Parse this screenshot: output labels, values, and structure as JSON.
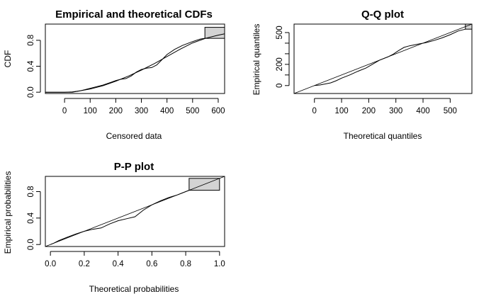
{
  "chart_data": [
    {
      "type": "line",
      "title": "Empirical and theoretical CDFs",
      "xlabel": "Censored data",
      "ylabel": "CDF",
      "xlim": [
        -75,
        625
      ],
      "ylim": [
        -0.02,
        1.05
      ],
      "xticks": [
        0,
        100,
        200,
        300,
        400,
        500,
        600
      ],
      "yticks": [
        0.0,
        0.4,
        0.8
      ],
      "xtick_labels": [
        "0",
        "100",
        "200",
        "300",
        "400",
        "500",
        "600"
      ],
      "ytick_labels": [
        "0.0",
        "0.4",
        "0.8"
      ],
      "uncertainty_box": {
        "x": [
          548,
          625
        ],
        "y": [
          0.83,
          1.0
        ]
      },
      "series": [
        {
          "color": "#000000",
          "x": [
            -75,
            30,
            60,
            90,
            120,
            150,
            180,
            200,
            220,
            240,
            260,
            280,
            300,
            320,
            340,
            360,
            380,
            400,
            430,
            460,
            500,
            530,
            548
          ],
          "y": [
            0.0,
            0.0,
            0.02,
            0.05,
            0.08,
            0.11,
            0.15,
            0.18,
            0.2,
            0.21,
            0.25,
            0.31,
            0.35,
            0.37,
            0.38,
            0.42,
            0.5,
            0.58,
            0.66,
            0.72,
            0.78,
            0.82,
            0.83
          ]
        },
        {
          "color": "#ff0000",
          "x": [
            -75,
            0,
            30,
            60,
            100,
            150,
            200,
            250,
            300,
            350,
            400,
            450,
            500,
            550,
            600,
            625
          ],
          "y": [
            0.0,
            0.0,
            0.005,
            0.02,
            0.05,
            0.1,
            0.17,
            0.25,
            0.34,
            0.44,
            0.55,
            0.66,
            0.76,
            0.83,
            0.88,
            0.9
          ]
        }
      ]
    },
    {
      "type": "scatter",
      "title": "Q-Q plot",
      "xlabel": "Theoretical quantiles",
      "ylabel": "Empirical quantiles",
      "xlim": [
        -75,
        580
      ],
      "ylim": [
        -75,
        580
      ],
      "xticks": [
        0,
        100,
        200,
        300,
        400,
        500
      ],
      "yticks": [
        0,
        200,
        500
      ],
      "xtick_labels": [
        "0",
        "100",
        "200",
        "300",
        "400",
        "500"
      ],
      "ytick_labels": [
        "0",
        "200",
        "500"
      ],
      "yticks_minor": [
        100,
        300,
        400
      ],
      "uncertainty_box": {
        "x": [
          556,
          580
        ],
        "y": [
          532,
          580
        ]
      },
      "series": [
        {
          "color": "#000000",
          "x": [
            0,
            20,
            40,
            60,
            80,
            100,
            130,
            160,
            190,
            210,
            240,
            270,
            290,
            310,
            330,
            350,
            380,
            410,
            440,
            470,
            500,
            530,
            556
          ],
          "y": [
            0,
            5,
            15,
            25,
            45,
            70,
            100,
            135,
            165,
            195,
            240,
            270,
            295,
            330,
            360,
            375,
            390,
            405,
            425,
            450,
            480,
            515,
            532
          ]
        }
      ]
    },
    {
      "type": "scatter",
      "title": "P-P plot",
      "xlabel": "Theoretical probabilities",
      "ylabel": "Empirical probabilities",
      "xlim": [
        -0.03,
        1.03
      ],
      "ylim": [
        -0.03,
        1.03
      ],
      "xticks": [
        0.0,
        0.2,
        0.4,
        0.6,
        0.8,
        1.0
      ],
      "yticks": [
        0.0,
        0.4,
        0.8
      ],
      "xtick_labels": [
        "0.0",
        "0.2",
        "0.4",
        "0.6",
        "0.8",
        "1.0"
      ],
      "ytick_labels": [
        "0.0",
        "0.4",
        "0.8"
      ],
      "uncertainty_box": {
        "x": [
          0.82,
          1.0
        ],
        "y": [
          0.82,
          1.0
        ]
      },
      "series": [
        {
          "color": "#000000",
          "x": [
            0.0,
            0.02,
            0.05,
            0.1,
            0.15,
            0.2,
            0.25,
            0.3,
            0.35,
            0.4,
            0.45,
            0.5,
            0.55,
            0.6,
            0.65,
            0.7,
            0.75,
            0.8,
            0.82
          ],
          "y": [
            0.0,
            0.02,
            0.06,
            0.11,
            0.16,
            0.2,
            0.23,
            0.25,
            0.31,
            0.36,
            0.39,
            0.42,
            0.52,
            0.6,
            0.66,
            0.71,
            0.75,
            0.8,
            0.82
          ]
        }
      ]
    }
  ]
}
